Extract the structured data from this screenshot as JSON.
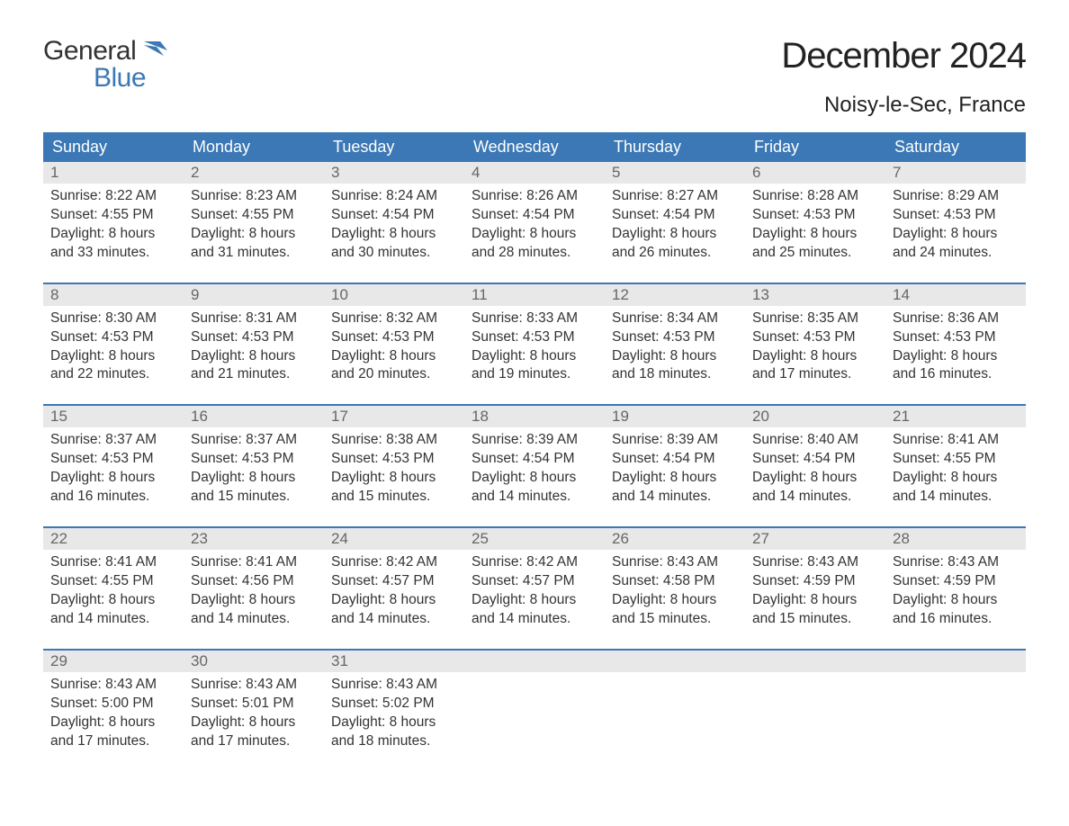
{
  "logo": {
    "general": "General",
    "blue": "Blue"
  },
  "title": "December 2024",
  "location": "Noisy-le-Sec, France",
  "colors": {
    "brand_blue": "#3b78b5",
    "header_bg": "#3b78b5",
    "header_text": "#ffffff",
    "daynum_bg": "#e8e8e8",
    "daynum_text": "#666666",
    "body_text": "#333333",
    "page_bg": "#ffffff"
  },
  "days_of_week": [
    "Sunday",
    "Monday",
    "Tuesday",
    "Wednesday",
    "Thursday",
    "Friday",
    "Saturday"
  ],
  "labels": {
    "sunrise": "Sunrise:",
    "sunset": "Sunset:",
    "daylight": "Daylight:"
  },
  "days": [
    {
      "n": 1,
      "sunrise": "8:22 AM",
      "sunset": "4:55 PM",
      "dl1": "8 hours",
      "dl2": "and 33 minutes."
    },
    {
      "n": 2,
      "sunrise": "8:23 AM",
      "sunset": "4:55 PM",
      "dl1": "8 hours",
      "dl2": "and 31 minutes."
    },
    {
      "n": 3,
      "sunrise": "8:24 AM",
      "sunset": "4:54 PM",
      "dl1": "8 hours",
      "dl2": "and 30 minutes."
    },
    {
      "n": 4,
      "sunrise": "8:26 AM",
      "sunset": "4:54 PM",
      "dl1": "8 hours",
      "dl2": "and 28 minutes."
    },
    {
      "n": 5,
      "sunrise": "8:27 AM",
      "sunset": "4:54 PM",
      "dl1": "8 hours",
      "dl2": "and 26 minutes."
    },
    {
      "n": 6,
      "sunrise": "8:28 AM",
      "sunset": "4:53 PM",
      "dl1": "8 hours",
      "dl2": "and 25 minutes."
    },
    {
      "n": 7,
      "sunrise": "8:29 AM",
      "sunset": "4:53 PM",
      "dl1": "8 hours",
      "dl2": "and 24 minutes."
    },
    {
      "n": 8,
      "sunrise": "8:30 AM",
      "sunset": "4:53 PM",
      "dl1": "8 hours",
      "dl2": "and 22 minutes."
    },
    {
      "n": 9,
      "sunrise": "8:31 AM",
      "sunset": "4:53 PM",
      "dl1": "8 hours",
      "dl2": "and 21 minutes."
    },
    {
      "n": 10,
      "sunrise": "8:32 AM",
      "sunset": "4:53 PM",
      "dl1": "8 hours",
      "dl2": "and 20 minutes."
    },
    {
      "n": 11,
      "sunrise": "8:33 AM",
      "sunset": "4:53 PM",
      "dl1": "8 hours",
      "dl2": "and 19 minutes."
    },
    {
      "n": 12,
      "sunrise": "8:34 AM",
      "sunset": "4:53 PM",
      "dl1": "8 hours",
      "dl2": "and 18 minutes."
    },
    {
      "n": 13,
      "sunrise": "8:35 AM",
      "sunset": "4:53 PM",
      "dl1": "8 hours",
      "dl2": "and 17 minutes."
    },
    {
      "n": 14,
      "sunrise": "8:36 AM",
      "sunset": "4:53 PM",
      "dl1": "8 hours",
      "dl2": "and 16 minutes."
    },
    {
      "n": 15,
      "sunrise": "8:37 AM",
      "sunset": "4:53 PM",
      "dl1": "8 hours",
      "dl2": "and 16 minutes."
    },
    {
      "n": 16,
      "sunrise": "8:37 AM",
      "sunset": "4:53 PM",
      "dl1": "8 hours",
      "dl2": "and 15 minutes."
    },
    {
      "n": 17,
      "sunrise": "8:38 AM",
      "sunset": "4:53 PM",
      "dl1": "8 hours",
      "dl2": "and 15 minutes."
    },
    {
      "n": 18,
      "sunrise": "8:39 AM",
      "sunset": "4:54 PM",
      "dl1": "8 hours",
      "dl2": "and 14 minutes."
    },
    {
      "n": 19,
      "sunrise": "8:39 AM",
      "sunset": "4:54 PM",
      "dl1": "8 hours",
      "dl2": "and 14 minutes."
    },
    {
      "n": 20,
      "sunrise": "8:40 AM",
      "sunset": "4:54 PM",
      "dl1": "8 hours",
      "dl2": "and 14 minutes."
    },
    {
      "n": 21,
      "sunrise": "8:41 AM",
      "sunset": "4:55 PM",
      "dl1": "8 hours",
      "dl2": "and 14 minutes."
    },
    {
      "n": 22,
      "sunrise": "8:41 AM",
      "sunset": "4:55 PM",
      "dl1": "8 hours",
      "dl2": "and 14 minutes."
    },
    {
      "n": 23,
      "sunrise": "8:41 AM",
      "sunset": "4:56 PM",
      "dl1": "8 hours",
      "dl2": "and 14 minutes."
    },
    {
      "n": 24,
      "sunrise": "8:42 AM",
      "sunset": "4:57 PM",
      "dl1": "8 hours",
      "dl2": "and 14 minutes."
    },
    {
      "n": 25,
      "sunrise": "8:42 AM",
      "sunset": "4:57 PM",
      "dl1": "8 hours",
      "dl2": "and 14 minutes."
    },
    {
      "n": 26,
      "sunrise": "8:43 AM",
      "sunset": "4:58 PM",
      "dl1": "8 hours",
      "dl2": "and 15 minutes."
    },
    {
      "n": 27,
      "sunrise": "8:43 AM",
      "sunset": "4:59 PM",
      "dl1": "8 hours",
      "dl2": "and 15 minutes."
    },
    {
      "n": 28,
      "sunrise": "8:43 AM",
      "sunset": "4:59 PM",
      "dl1": "8 hours",
      "dl2": "and 16 minutes."
    },
    {
      "n": 29,
      "sunrise": "8:43 AM",
      "sunset": "5:00 PM",
      "dl1": "8 hours",
      "dl2": "and 17 minutes."
    },
    {
      "n": 30,
      "sunrise": "8:43 AM",
      "sunset": "5:01 PM",
      "dl1": "8 hours",
      "dl2": "and 17 minutes."
    },
    {
      "n": 31,
      "sunrise": "8:43 AM",
      "sunset": "5:02 PM",
      "dl1": "8 hours",
      "dl2": "and 18 minutes."
    }
  ],
  "grid": {
    "start_offset": 0,
    "total_cells": 35
  }
}
